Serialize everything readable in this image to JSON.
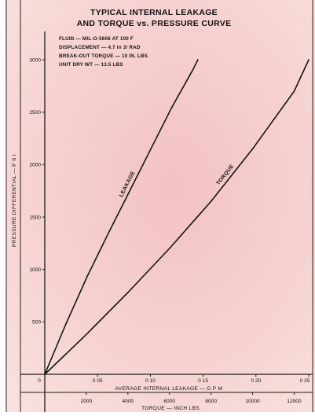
{
  "chart_data": {
    "type": "line",
    "title_lines": [
      "TYPICAL INTERNAL LEAKAGE",
      "AND TORQUE vs. PRESSURE CURVE"
    ],
    "notes": [
      "FLUID — MIL-O-5606 AT 100 F",
      "DISPLACEMENT — 4.7 in 3/ RAD",
      "BREAK-OUT TORQUE — 10 IN. LBS",
      "UNIT DRY WT — 13.5 LBS"
    ],
    "ylabel": "PRESSURE DIFFERENTIAL — P S I",
    "ylim": [
      0,
      3200
    ],
    "y_ticks": [
      500,
      1000,
      1500,
      2000,
      2500,
      3000
    ],
    "x_axes": [
      {
        "label": "AVERAGE INTERNAL LEAKAGE — G P M",
        "range": [
          0,
          0.25
        ],
        "ticks": [
          0,
          0.05,
          0.1,
          0.15,
          0.2,
          0.25
        ],
        "tick_labels": [
          "0",
          "0 05",
          "0 10",
          "0 15",
          "0 20",
          "0 25"
        ]
      },
      {
        "label": "TORQUE — INCH LBS",
        "range": [
          0,
          12700
        ],
        "ticks": [
          2000,
          4000,
          6000,
          8000,
          10000,
          12000
        ],
        "tick_labels": [
          "2000",
          "4000",
          "6000",
          "8000",
          "10000",
          "12000"
        ]
      }
    ],
    "series": [
      {
        "name": "LEAKAGE",
        "x_axis": "leakage",
        "x": [
          0,
          0.02,
          0.04,
          0.06,
          0.08,
          0.1,
          0.12,
          0.14,
          0.145
        ],
        "y": [
          0,
          480,
          930,
          1340,
          1740,
          2140,
          2540,
          2900,
          3000
        ]
      },
      {
        "name": "TORQUE",
        "x_axis": "torque",
        "x": [
          0,
          2000,
          4000,
          6000,
          8000,
          10000,
          12000,
          12700
        ],
        "y": [
          0,
          380,
          780,
          1200,
          1650,
          2150,
          2700,
          3000
        ]
      }
    ],
    "background": "#f6cfce",
    "line_color": "#141414"
  }
}
